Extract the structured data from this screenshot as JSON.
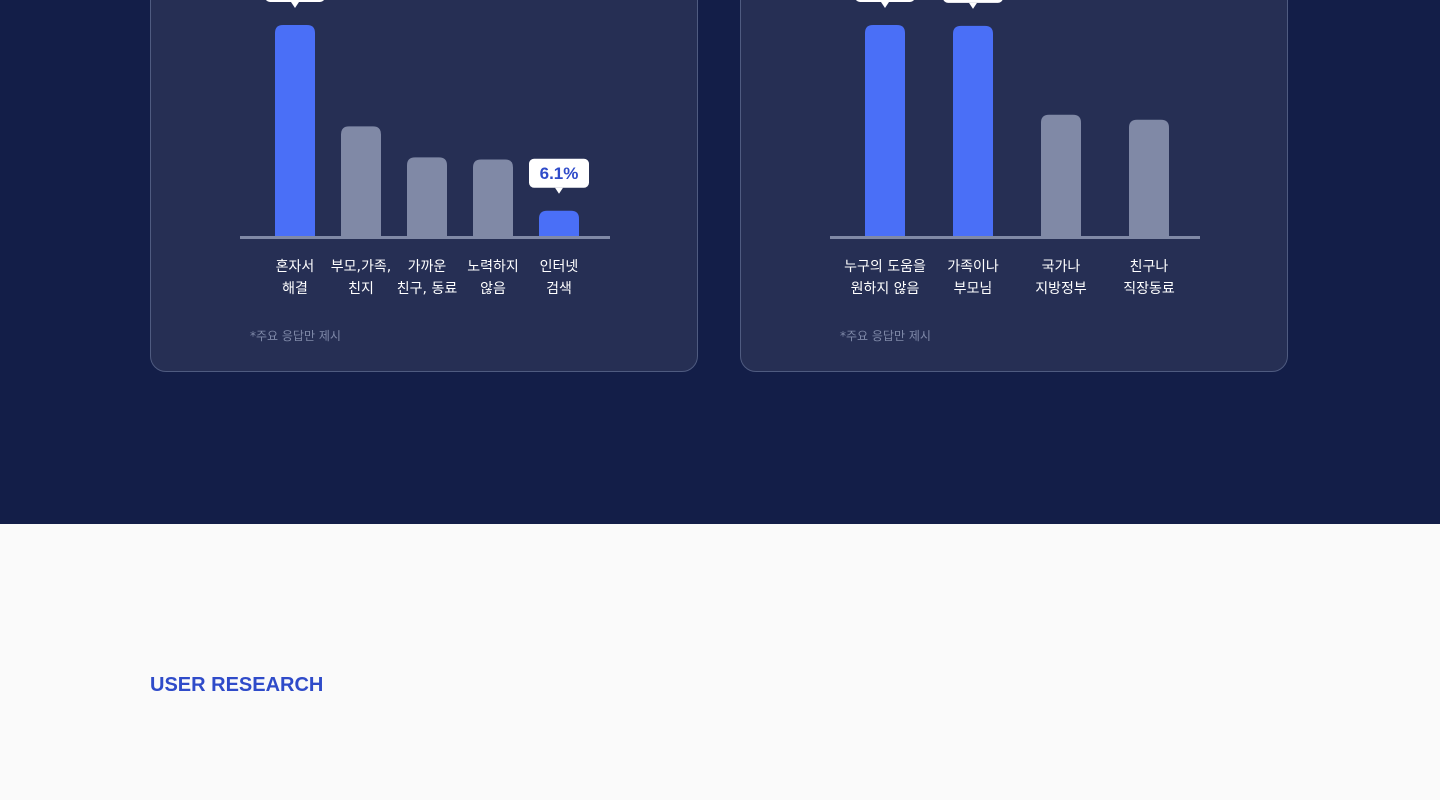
{
  "colors": {
    "background_dark": "#131e48",
    "card": "#262f54",
    "card_border": "#4f5b80",
    "highlight_bar": "#4a6ff7",
    "normal_bar": "#8089a6",
    "baseline": "#8089a6",
    "tooltip_bg": "#ffffff",
    "tooltip_text": "#2f4bc9",
    "section_title": "#2f4bc9"
  },
  "chart_data": [
    {
      "type": "bar",
      "title": "",
      "categories": [
        "혼자서\n해결",
        "부모,가족,\n친지",
        "가까운\n친구, 동료",
        "노력하지\n않음",
        "인터넷\n검색"
      ],
      "values": [
        51,
        26.5,
        19,
        18.5,
        6.1
      ],
      "highlighted": [
        true,
        false,
        false,
        false,
        true
      ],
      "value_labels": [
        "",
        "",
        "",
        "",
        "6.1%"
      ],
      "ylim": [
        0,
        51
      ],
      "grid": false,
      "footnote": "*주요 응답만 제시"
    },
    {
      "type": "bar",
      "title": "",
      "categories": [
        "누구의 도움을\n원하지 않음",
        "가족이나\n부모님",
        "국가나\n지방정부",
        "친구나\n직장동료"
      ],
      "values": [
        51,
        50.8,
        29.3,
        28.1
      ],
      "highlighted": [
        true,
        true,
        false,
        false
      ],
      "value_labels": [
        "",
        "",
        "",
        ""
      ],
      "ylim": [
        0,
        51
      ],
      "grid": false,
      "footnote": "*주요 응답만 제시"
    }
  ],
  "section": {
    "title": "USER RESEARCH"
  }
}
